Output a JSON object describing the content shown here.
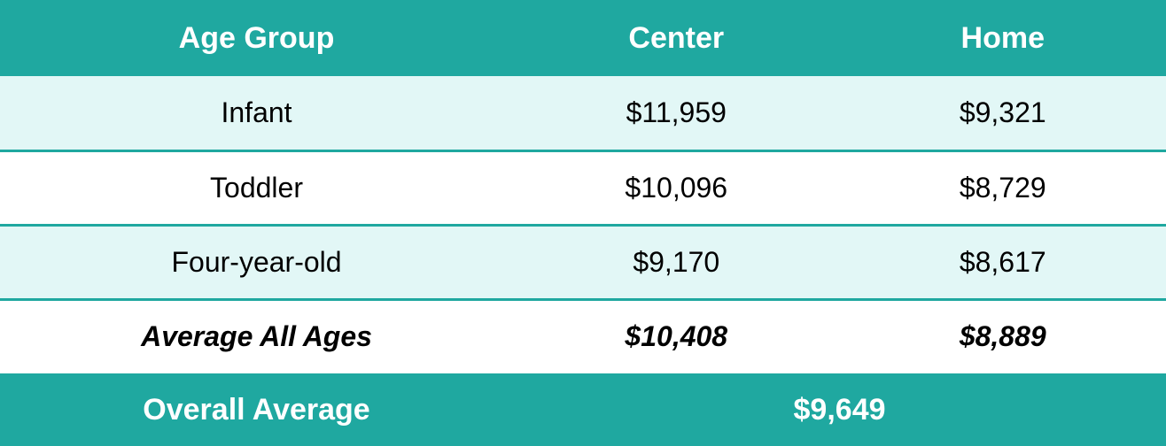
{
  "table": {
    "type": "table",
    "colors": {
      "header_bg": "#1fa8a0",
      "header_text": "#ffffff",
      "row_alt_bg": "#e2f7f6",
      "row_bg": "#ffffff",
      "row_text": "#000000",
      "border": "#1fa8a0",
      "footer_bg": "#1fa8a0",
      "footer_text": "#ffffff"
    },
    "fontsize_header": 34,
    "fontsize_body": 32,
    "columns": [
      {
        "key": "age_group",
        "label": "Age Group",
        "width_pct": 44
      },
      {
        "key": "center",
        "label": "Center",
        "width_pct": 28
      },
      {
        "key": "home",
        "label": "Home",
        "width_pct": 28
      }
    ],
    "rows": [
      {
        "age_group": "Infant",
        "center": "$11,959",
        "home": "$9,321",
        "alt": true
      },
      {
        "age_group": "Toddler",
        "center": "$10,096",
        "home": "$8,729",
        "alt": false
      },
      {
        "age_group": "Four-year-old",
        "center": "$9,170",
        "home": "$8,617",
        "alt": true
      }
    ],
    "average_row": {
      "age_group": "Average All Ages",
      "center": "$10,408",
      "home": "$8,889"
    },
    "footer": {
      "label": "Overall Average",
      "value": "$9,649"
    }
  }
}
